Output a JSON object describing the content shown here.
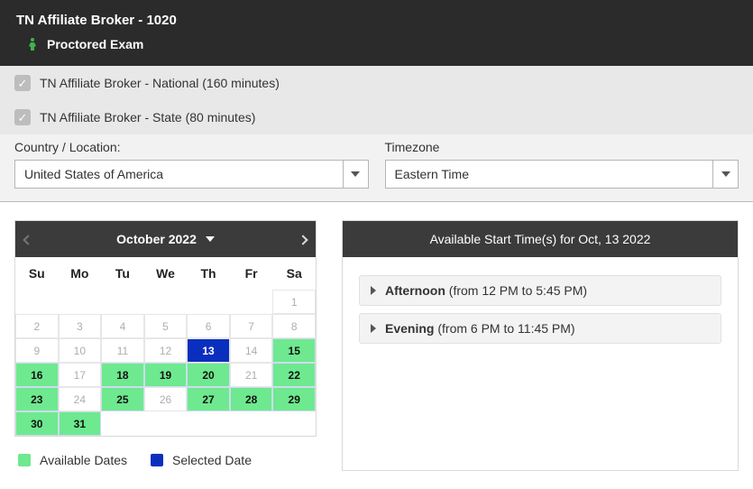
{
  "header": {
    "title": "TN Affiliate Broker - 1020",
    "subtitle": "Proctored Exam",
    "proctor_icon_color": "#3fb24f"
  },
  "exams": [
    {
      "label": "TN Affiliate Broker - National (160 minutes)",
      "checked": true
    },
    {
      "label": "TN Affiliate Broker - State (80 minutes)",
      "checked": true
    }
  ],
  "form": {
    "country_label": "Country / Location:",
    "country_value": "United States of America",
    "timezone_label": "Timezone",
    "timezone_value": "Eastern Time"
  },
  "calendar": {
    "month_label": "October 2022",
    "dow": [
      "Su",
      "Mo",
      "Tu",
      "We",
      "Th",
      "Fr",
      "Sa"
    ],
    "weeks": [
      [
        {
          "n": "",
          "s": "empty"
        },
        {
          "n": "",
          "s": "empty"
        },
        {
          "n": "",
          "s": "empty"
        },
        {
          "n": "",
          "s": "empty"
        },
        {
          "n": "",
          "s": "empty"
        },
        {
          "n": "",
          "s": "empty"
        },
        {
          "n": "1",
          "s": ""
        }
      ],
      [
        {
          "n": "2",
          "s": ""
        },
        {
          "n": "3",
          "s": ""
        },
        {
          "n": "4",
          "s": ""
        },
        {
          "n": "5",
          "s": ""
        },
        {
          "n": "6",
          "s": ""
        },
        {
          "n": "7",
          "s": ""
        },
        {
          "n": "8",
          "s": ""
        }
      ],
      [
        {
          "n": "9",
          "s": ""
        },
        {
          "n": "10",
          "s": ""
        },
        {
          "n": "11",
          "s": ""
        },
        {
          "n": "12",
          "s": ""
        },
        {
          "n": "13",
          "s": "sel"
        },
        {
          "n": "14",
          "s": ""
        },
        {
          "n": "15",
          "s": "avail"
        }
      ],
      [
        {
          "n": "16",
          "s": "avail"
        },
        {
          "n": "17",
          "s": ""
        },
        {
          "n": "18",
          "s": "avail"
        },
        {
          "n": "19",
          "s": "avail"
        },
        {
          "n": "20",
          "s": "avail"
        },
        {
          "n": "21",
          "s": ""
        },
        {
          "n": "22",
          "s": "avail"
        }
      ],
      [
        {
          "n": "23",
          "s": "avail"
        },
        {
          "n": "24",
          "s": ""
        },
        {
          "n": "25",
          "s": "avail"
        },
        {
          "n": "26",
          "s": ""
        },
        {
          "n": "27",
          "s": "avail"
        },
        {
          "n": "28",
          "s": "avail"
        },
        {
          "n": "29",
          "s": "avail"
        }
      ],
      [
        {
          "n": "30",
          "s": "avail"
        },
        {
          "n": "31",
          "s": "avail"
        },
        {
          "n": "",
          "s": "empty"
        },
        {
          "n": "",
          "s": "empty"
        },
        {
          "n": "",
          "s": "empty"
        },
        {
          "n": "",
          "s": "empty"
        },
        {
          "n": "",
          "s": "empty"
        }
      ]
    ],
    "legend_available": "Available Dates",
    "legend_selected": "Selected Date",
    "colors": {
      "available": "#6ee98f",
      "selected": "#0a2fbf"
    }
  },
  "times": {
    "heading": "Available Start Time(s) for Oct, 13 2022",
    "slots": [
      {
        "label_strong": "Afternoon",
        "label_rest": " (from 12 PM to 5:45 PM)"
      },
      {
        "label_strong": "Evening",
        "label_rest": " (from 6 PM to 11:45 PM)"
      }
    ]
  }
}
